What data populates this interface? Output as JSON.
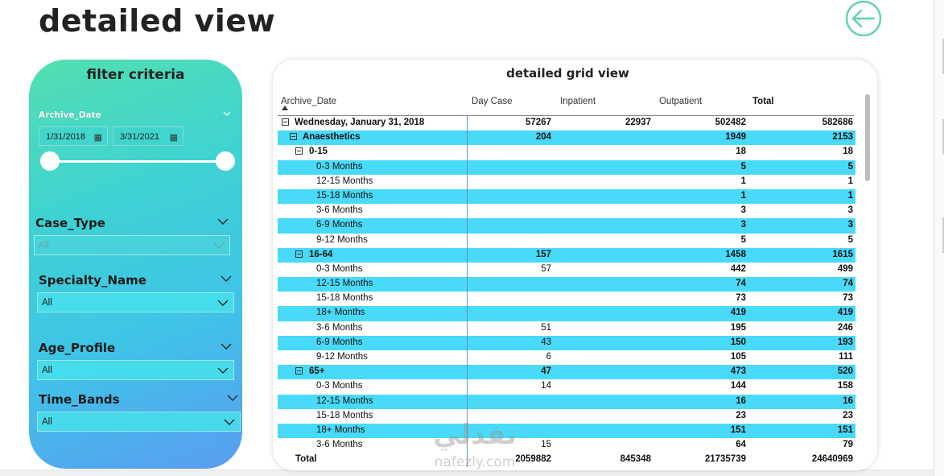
{
  "page": {
    "title": "detailed view"
  },
  "filter": {
    "title": "filter criteria",
    "archive_date": {
      "label": "Archive_Date",
      "start": "1/31/2018",
      "end": "3/31/2021"
    },
    "case_type": {
      "label": "Case_Type",
      "value": "All"
    },
    "specialty_name": {
      "label": "Specialty_Name",
      "value": "All"
    },
    "age_profile": {
      "label": "Age_Profile",
      "value": "All"
    },
    "time_bands": {
      "label": "Time_Bands",
      "value": "All"
    }
  },
  "grid": {
    "title": "detailed grid view",
    "columns": [
      "Archive_Date",
      "Day Case",
      "Inpatient",
      "Outpatient",
      "Total"
    ],
    "rows": [
      {
        "label": "Wednesday, January 31, 2018",
        "level": 0,
        "expander": true,
        "bold": true,
        "cyan": false,
        "day_case": "57267",
        "inpatient": "22937",
        "outpatient": "502482",
        "total": "582686"
      },
      {
        "label": "Anaesthetics",
        "level": 1,
        "expander": true,
        "bold": true,
        "cyan": true,
        "day_case": "204",
        "inpatient": "",
        "outpatient": "1949",
        "total": "2153"
      },
      {
        "label": "0-15",
        "level": 2,
        "expander": true,
        "bold": true,
        "cyan": false,
        "day_case": "",
        "inpatient": "",
        "outpatient": "18",
        "total": "18"
      },
      {
        "label": "0-3 Months",
        "level": 3,
        "expander": false,
        "bold": false,
        "cyan": true,
        "day_case": "",
        "inpatient": "",
        "outpatient": "5",
        "total": "5"
      },
      {
        "label": "12-15 Months",
        "level": 3,
        "expander": false,
        "bold": false,
        "cyan": false,
        "day_case": "",
        "inpatient": "",
        "outpatient": "1",
        "total": "1"
      },
      {
        "label": "15-18 Months",
        "level": 3,
        "expander": false,
        "bold": false,
        "cyan": true,
        "day_case": "",
        "inpatient": "",
        "outpatient": "1",
        "total": "1"
      },
      {
        "label": "3-6 Months",
        "level": 3,
        "expander": false,
        "bold": false,
        "cyan": false,
        "day_case": "",
        "inpatient": "",
        "outpatient": "3",
        "total": "3"
      },
      {
        "label": "6-9 Months",
        "level": 3,
        "expander": false,
        "bold": false,
        "cyan": true,
        "day_case": "",
        "inpatient": "",
        "outpatient": "3",
        "total": "3"
      },
      {
        "label": "9-12 Months",
        "level": 3,
        "expander": false,
        "bold": false,
        "cyan": false,
        "day_case": "",
        "inpatient": "",
        "outpatient": "5",
        "total": "5"
      },
      {
        "label": "16-64",
        "level": 2,
        "expander": true,
        "bold": true,
        "cyan": true,
        "day_case": "157",
        "inpatient": "",
        "outpatient": "1458",
        "total": "1615"
      },
      {
        "label": "0-3 Months",
        "level": 3,
        "expander": false,
        "bold": false,
        "cyan": false,
        "day_case": "57",
        "inpatient": "",
        "outpatient": "442",
        "total": "499"
      },
      {
        "label": "12-15 Months",
        "level": 3,
        "expander": false,
        "bold": false,
        "cyan": true,
        "day_case": "",
        "inpatient": "",
        "outpatient": "74",
        "total": "74"
      },
      {
        "label": "15-18 Months",
        "level": 3,
        "expander": false,
        "bold": false,
        "cyan": false,
        "day_case": "",
        "inpatient": "",
        "outpatient": "73",
        "total": "73"
      },
      {
        "label": "18+ Months",
        "level": 3,
        "expander": false,
        "bold": false,
        "cyan": true,
        "day_case": "",
        "inpatient": "",
        "outpatient": "419",
        "total": "419"
      },
      {
        "label": "3-6 Months",
        "level": 3,
        "expander": false,
        "bold": false,
        "cyan": false,
        "day_case": "51",
        "inpatient": "",
        "outpatient": "195",
        "total": "246"
      },
      {
        "label": "6-9 Months",
        "level": 3,
        "expander": false,
        "bold": false,
        "cyan": true,
        "day_case": "43",
        "inpatient": "",
        "outpatient": "150",
        "total": "193"
      },
      {
        "label": "9-12 Months",
        "level": 3,
        "expander": false,
        "bold": false,
        "cyan": false,
        "day_case": "6",
        "inpatient": "",
        "outpatient": "105",
        "total": "111"
      },
      {
        "label": "65+",
        "level": 2,
        "expander": true,
        "bold": true,
        "cyan": true,
        "day_case": "47",
        "inpatient": "",
        "outpatient": "473",
        "total": "520"
      },
      {
        "label": "0-3 Months",
        "level": 3,
        "expander": false,
        "bold": false,
        "cyan": false,
        "day_case": "14",
        "inpatient": "",
        "outpatient": "144",
        "total": "158"
      },
      {
        "label": "12-15 Months",
        "level": 3,
        "expander": false,
        "bold": false,
        "cyan": true,
        "day_case": "",
        "inpatient": "",
        "outpatient": "16",
        "total": "16"
      },
      {
        "label": "15-18 Months",
        "level": 3,
        "expander": false,
        "bold": false,
        "cyan": false,
        "day_case": "",
        "inpatient": "",
        "outpatient": "23",
        "total": "23"
      },
      {
        "label": "18+ Months",
        "level": 3,
        "expander": false,
        "bold": false,
        "cyan": true,
        "day_case": "",
        "inpatient": "",
        "outpatient": "151",
        "total": "151"
      },
      {
        "label": "3-6 Months",
        "level": 3,
        "expander": false,
        "bold": false,
        "cyan": false,
        "day_case": "15",
        "inpatient": "",
        "outpatient": "64",
        "total": "79"
      }
    ],
    "total": {
      "label": "Total",
      "day_case": "2059882",
      "inpatient": "845348",
      "outpatient": "21735739",
      "total": "24640969"
    }
  },
  "watermark": {
    "arabic": "نفذلي",
    "latin": "nafezly.com"
  },
  "colors": {
    "row_highlight": "#48daf8",
    "panel_top": "#52dfb0",
    "panel_bottom": "#5a9cf0",
    "back_icon": "#5fd3ad"
  }
}
